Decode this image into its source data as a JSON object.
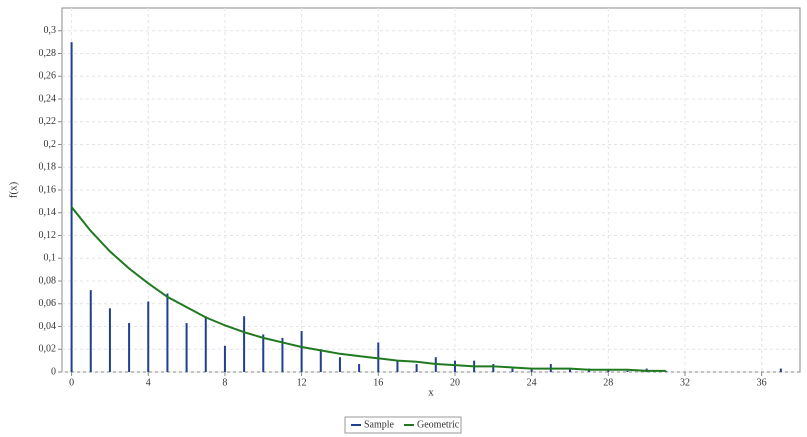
{
  "chart_data": {
    "type": "stem",
    "x_label": "x",
    "y_label": "f(x)",
    "xlim": [
      -0.5,
      38
    ],
    "ylim": [
      0,
      0.32
    ],
    "xticks": [
      0,
      4,
      8,
      12,
      16,
      20,
      24,
      28,
      32,
      36
    ],
    "yticks": [
      0,
      {
        "value": 0.02,
        "label": "0,02"
      },
      {
        "value": 0.04,
        "label": "0,04"
      },
      {
        "value": 0.06,
        "label": "0,06"
      },
      {
        "value": 0.08,
        "label": "0,08"
      },
      {
        "value": 0.1,
        "label": "0,1"
      },
      {
        "value": 0.12,
        "label": "0,12"
      },
      {
        "value": 0.14,
        "label": "0,14"
      },
      {
        "value": 0.16,
        "label": "0,16"
      },
      {
        "value": 0.18,
        "label": "0,18"
      },
      {
        "value": 0.2,
        "label": "0,2"
      },
      {
        "value": 0.22,
        "label": "0,22"
      },
      {
        "value": 0.24,
        "label": "0,24"
      },
      {
        "value": 0.26,
        "label": "0,26"
      },
      {
        "value": 0.28,
        "label": "0,28"
      },
      {
        "value": 0.3,
        "label": "0,3"
      }
    ],
    "grid": true,
    "legend": "bottom",
    "series": [
      {
        "name": "Sample",
        "color": "#1f3f8f",
        "style": "stem",
        "x": [
          0,
          1,
          2,
          3,
          4,
          5,
          6,
          7,
          8,
          9,
          10,
          11,
          12,
          13,
          14,
          15,
          16,
          17,
          18,
          19,
          20,
          21,
          22,
          23,
          24,
          25,
          26,
          27,
          28,
          29,
          30,
          31,
          37
        ],
        "values": [
          0.29,
          0.072,
          0.056,
          0.043,
          0.062,
          0.069,
          0.043,
          0.049,
          0.023,
          0.049,
          0.033,
          0.03,
          0.036,
          0.02,
          0.013,
          0.007,
          0.026,
          0.01,
          0.007,
          0.013,
          0.01,
          0.01,
          0.007,
          0.003,
          0.003,
          0.007,
          0.003,
          0.003,
          0.002,
          0.001,
          0.003,
          0.001,
          0.003
        ]
      },
      {
        "name": "Geometric",
        "color": "#1f7a1f",
        "style": "line",
        "x": [
          0,
          1,
          2,
          3,
          4,
          5,
          6,
          7,
          8,
          9,
          10,
          11,
          12,
          13,
          14,
          15,
          16,
          17,
          18,
          19,
          20,
          21,
          22,
          23,
          24,
          25,
          26,
          27,
          28,
          29,
          30,
          31
        ],
        "values": [
          0.145,
          0.124,
          0.106,
          0.091,
          0.078,
          0.066,
          0.057,
          0.048,
          0.041,
          0.035,
          0.03,
          0.026,
          0.022,
          0.019,
          0.016,
          0.014,
          0.012,
          0.01,
          0.009,
          0.007,
          0.006,
          0.005,
          0.005,
          0.004,
          0.003,
          0.003,
          0.003,
          0.002,
          0.002,
          0.002,
          0.001,
          0.001
        ]
      }
    ]
  }
}
